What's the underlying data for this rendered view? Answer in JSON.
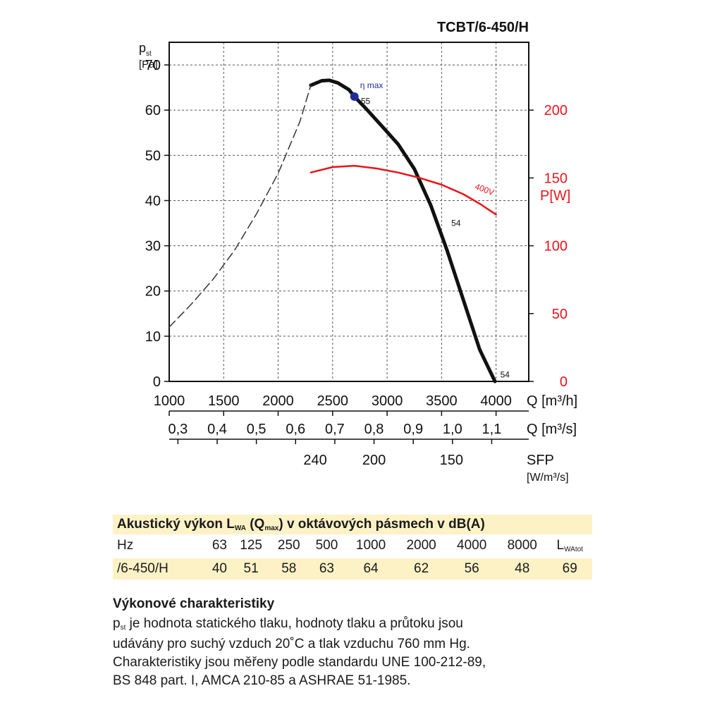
{
  "chart_data": {
    "type": "line",
    "title": "TCBT/6-450/H",
    "y_label_main": "p",
    "y_label_sub": "st",
    "y_label_unit": "[Pa]",
    "y_ticks": [
      "0",
      "10",
      "20",
      "30",
      "40",
      "50",
      "60",
      "70"
    ],
    "ylim": [
      0,
      75
    ],
    "x_label": "Q [m³/h]",
    "x_ticks": [
      "1000",
      "1500",
      "2000",
      "2500",
      "3000",
      "3500",
      "4000"
    ],
    "xlim": [
      1000,
      4300
    ],
    "x2_label": "Q [m³/s]",
    "x2_ticks": [
      "0,3",
      "0,4",
      "0,5",
      "0,6",
      "0,7",
      "0,8",
      "0,9",
      "1,0",
      "1,1"
    ],
    "x3_label": "SFP",
    "x3_unit": "[W/m³/s]",
    "x3_ticks": [
      "240",
      "200",
      "150"
    ],
    "y2_label": "P[W]",
    "y2_ticks": [
      "0",
      "50",
      "100",
      "150",
      "200"
    ],
    "y2lim": [
      0,
      250
    ],
    "series": [
      {
        "style": "solid",
        "x": [
          2300,
          2400,
          2470,
          2550,
          2650,
          2700,
          2800,
          2950,
          3100,
          3250,
          3400,
          3550,
          3700,
          3850,
          3990
        ],
        "y": [
          65.5,
          66.5,
          66.6,
          66.0,
          64.5,
          63.0,
          60.5,
          56.5,
          52.5,
          47.0,
          39.0,
          29.0,
          18.0,
          7.0,
          0
        ]
      },
      {
        "style": "dashed",
        "x": [
          1000,
          1200,
          1400,
          1600,
          1800,
          2000,
          2200,
          2300
        ],
        "y": [
          12.0,
          17.0,
          22.5,
          29.0,
          37.0,
          46.0,
          57.5,
          65.5
        ]
      },
      {
        "name": "400V",
        "axis": "right",
        "color": "#e8141b",
        "x": [
          2300,
          2500,
          2700,
          2900,
          3100,
          3300,
          3500,
          3700,
          3850,
          4000
        ],
        "y": [
          154,
          158,
          159,
          157,
          154,
          150,
          145,
          138,
          131,
          123
        ]
      }
    ],
    "annotations": [
      {
        "text": "η max",
        "x": 2700,
        "y": 63.0,
        "color": "#1f2e9a",
        "marker": true
      },
      {
        "text": "55",
        "x": 2720,
        "y": 62.0
      },
      {
        "text": "54",
        "x": 3550,
        "y": 35.0
      },
      {
        "text": "54",
        "x": 4000,
        "y": 1.5
      },
      {
        "text": "400V",
        "x": 3800,
        "y": 142
      }
    ],
    "colors": {
      "curve": "#111111",
      "power": "#e8141b",
      "point": "#1f2e9a"
    }
  },
  "acoustic": {
    "title_main": "Akustický výkon L",
    "title_sub1": "WA",
    "title_mid": " (Q",
    "title_sub2": "max",
    "title_end": ") v oktávových pásmech v dB(A)",
    "hz_label": "Hz",
    "bands": [
      "63",
      "125",
      "250",
      "500",
      "1000",
      "2000",
      "4000",
      "8000"
    ],
    "total_label_main": "L",
    "total_label_sub": "WAtot",
    "model": "/6-450/H",
    "values": [
      "40",
      "51",
      "58",
      "63",
      "64",
      "62",
      "56",
      "48"
    ],
    "total": "69"
  },
  "performance": {
    "title": "Výkonové charakteristiky",
    "p_main": "p",
    "p_sub": "st",
    "line1": " je hodnota statického tlaku, hodnoty tlaku a průtoku jsou",
    "line2": "udávány pro suchý vzduch 20˚C a tlak vzduchu 760 mm Hg.",
    "line3": "Charakteristiky jsou měřeny podle standardu UNE 100-212-89,",
    "line4": "BS 848 part. I, AMCA 210-85 a ASHRAE 51-1985."
  }
}
